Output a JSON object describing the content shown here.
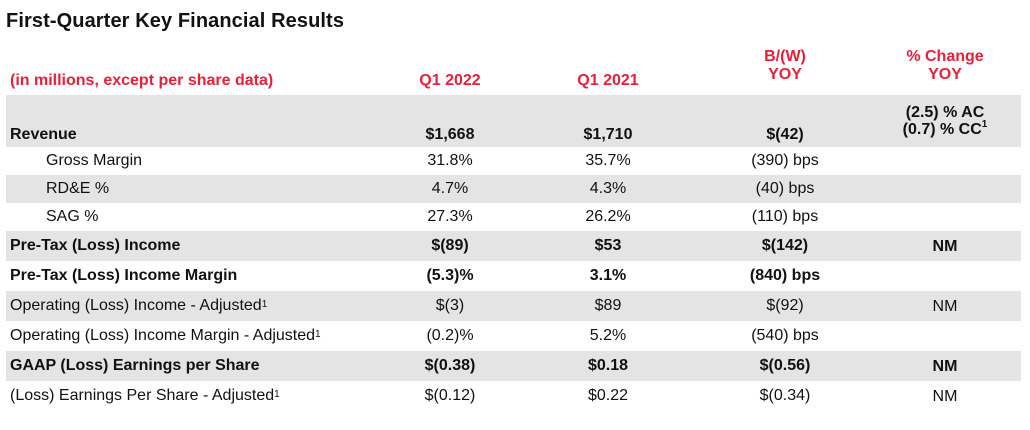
{
  "title": "First-Quarter Key Financial Results",
  "header": {
    "label": "(in millions, except per share data)",
    "col1": "Q1 2022",
    "col2": "Q1 2021",
    "col3_line1": "B/(W)",
    "col3_line2": "YOY",
    "col4_line1": "% Change",
    "col4_line2": "YOY"
  },
  "rows": [
    {
      "label": "Revenue",
      "q1_2022": "$1,668",
      "q1_2021": "$1,710",
      "bw_yoy": "$(42)",
      "pct_line1": "(2.5) % AC",
      "pct_line2": "(0.7) % CC",
      "pct_line2_sup": "1"
    },
    {
      "label": "Gross Margin",
      "q1_2022": "31.8%",
      "q1_2021": "35.7%",
      "bw_yoy": "(390) bps",
      "pct": ""
    },
    {
      "label": "RD&E %",
      "q1_2022": "4.7%",
      "q1_2021": "4.3%",
      "bw_yoy": "(40) bps",
      "pct": ""
    },
    {
      "label": "SAG %",
      "q1_2022": "27.3%",
      "q1_2021": "26.2%",
      "bw_yoy": "(110) bps",
      "pct": ""
    },
    {
      "label": "Pre-Tax (Loss) Income",
      "q1_2022": "$(89)",
      "q1_2021": "$53",
      "bw_yoy": "$(142)",
      "pct": "NM"
    },
    {
      "label": "Pre-Tax (Loss) Income Margin",
      "q1_2022": "(5.3)%",
      "q1_2021": "3.1%",
      "bw_yoy": "(840) bps",
      "pct": ""
    },
    {
      "label": "Operating (Loss) Income - Adjusted",
      "label_sup": "1",
      "q1_2022": "$(3)",
      "q1_2021": "$89",
      "bw_yoy": "$(92)",
      "pct": "NM"
    },
    {
      "label": "Operating (Loss) Income Margin - Adjusted",
      "label_sup": "1",
      "q1_2022": "(0.2)%",
      "q1_2021": "5.2%",
      "bw_yoy": "(540) bps",
      "pct": ""
    },
    {
      "label": "GAAP (Loss) Earnings per Share",
      "q1_2022": "$(0.38)",
      "q1_2021": "$0.18",
      "bw_yoy": "$(0.56)",
      "pct": "NM"
    },
    {
      "label": "(Loss) Earnings Per Share - Adjusted",
      "label_sup": "1",
      "q1_2022": "$(0.12)",
      "q1_2021": "$0.22",
      "bw_yoy": "$(0.34)",
      "pct": "NM"
    }
  ],
  "colors": {
    "header_text": "#e8203a",
    "row_shade": "#e4e4e4",
    "body_text": "#111111"
  }
}
